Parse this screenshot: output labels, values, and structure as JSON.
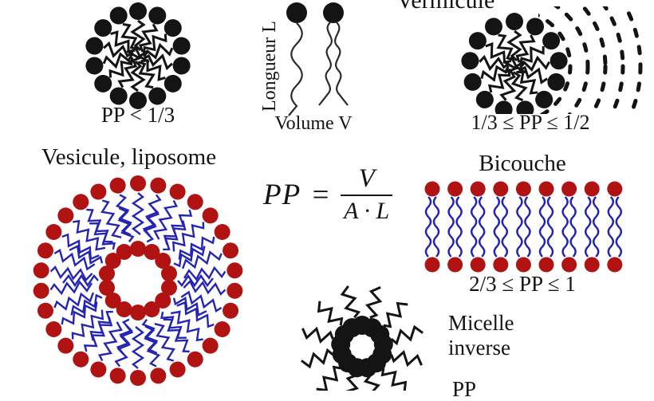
{
  "colors": {
    "background": "#ffffff",
    "ink": "#141414",
    "head_red": "#b11212",
    "tail_blue": "#2424b4"
  },
  "micelle": {
    "pp_label": "PP < 1/3"
  },
  "surfactant": {
    "length_label": "Longueur L",
    "volume_label": "Volume V"
  },
  "vermicule": {
    "title": "Vermicule",
    "pp_label": "1/3 ≤ PP ≤ 1/2"
  },
  "vesicule": {
    "title": "Vesicule, liposome"
  },
  "formula": {
    "lhs": "PP",
    "equals": "=",
    "numerator": "V",
    "denominator": "A · L"
  },
  "bicouche": {
    "title": "Bicouche",
    "pp_label": "2/3 ≤ PP ≤ 1"
  },
  "micelle_inverse": {
    "title_line1": "Micelle",
    "title_line2": "inverse",
    "pp_label_partial": "PP"
  }
}
